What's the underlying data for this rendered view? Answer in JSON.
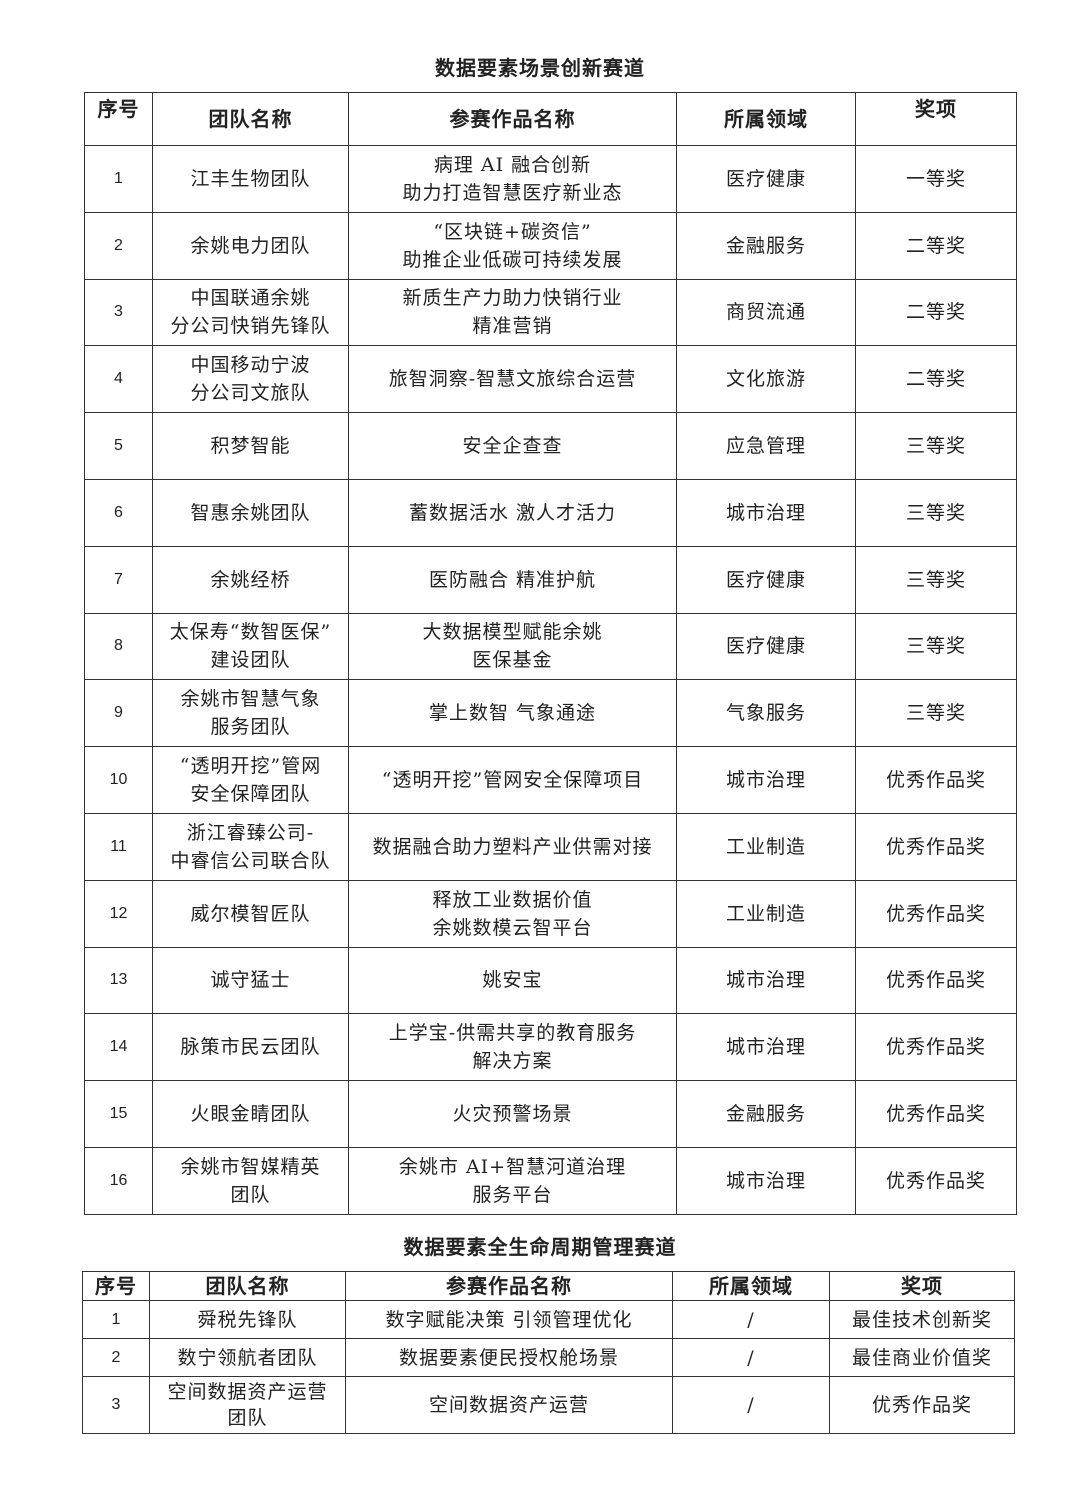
{
  "track1": {
    "title": "数据要素场景创新赛道",
    "headers": [
      "序号",
      "团队名称",
      "参赛作品名称",
      "所属领域",
      "奖项"
    ],
    "rows": [
      [
        "1",
        "江丰生物团队",
        "病理 AI 融合创新\n助力打造智慧医疗新业态",
        "医疗健康",
        "一等奖"
      ],
      [
        "2",
        "余姚电力团队",
        "“区块链+碳资信”\n助推企业低碳可持续发展",
        "金融服务",
        "二等奖"
      ],
      [
        "3",
        "中国联通余姚\n分公司快销先锋队",
        "新质生产力助力快销行业\n精准营销",
        "商贸流通",
        "二等奖"
      ],
      [
        "4",
        "中国移动宁波\n分公司文旅队",
        "旅智洞察-智慧文旅综合运营",
        "文化旅游",
        "二等奖"
      ],
      [
        "5",
        "积梦智能",
        "安全企查查",
        "应急管理",
        "三等奖"
      ],
      [
        "6",
        "智惠余姚团队",
        "蓄数据活水  激人才活力",
        "城市治理",
        "三等奖"
      ],
      [
        "7",
        "余姚经桥",
        "医防融合  精准护航",
        "医疗健康",
        "三等奖"
      ],
      [
        "8",
        "太保寿“数智医保”\n建设团队",
        "大数据模型赋能余姚\n医保基金",
        "医疗健康",
        "三等奖"
      ],
      [
        "9",
        "余姚市智慧气象\n服务团队",
        "掌上数智  气象通途",
        "气象服务",
        "三等奖"
      ],
      [
        "10",
        "“透明开挖”管网\n安全保障团队",
        "“透明开挖”管网安全保障项目",
        "城市治理",
        "优秀作品奖"
      ],
      [
        "11",
        "浙江睿臻公司-\n中睿信公司联合队",
        "数据融合助力塑料产业供需对接",
        "工业制造",
        "优秀作品奖"
      ],
      [
        "12",
        "威尔模智匠队",
        "释放工业数据价值\n余姚数模云智平台",
        "工业制造",
        "优秀作品奖"
      ],
      [
        "13",
        "诚守猛士",
        "姚安宝",
        "城市治理",
        "优秀作品奖"
      ],
      [
        "14",
        "脉策市民云团队",
        "上学宝-供需共享的教育服务\n解决方案",
        "城市治理",
        "优秀作品奖"
      ],
      [
        "15",
        "火眼金睛团队",
        "火灾预警场景",
        "金融服务",
        "优秀作品奖"
      ],
      [
        "16",
        "余姚市智媒精英\n团队",
        "余姚市 AI+智慧河道治理\n服务平台",
        "城市治理",
        "优秀作品奖"
      ]
    ]
  },
  "track2": {
    "title": "数据要素全生命周期管理赛道",
    "headers": [
      "序号",
      "团队名称",
      "参赛作品名称",
      "所属领域",
      "奖项"
    ],
    "rows": [
      [
        "1",
        "舜税先锋队",
        "数字赋能决策  引领管理优化",
        "/",
        "最佳技术创新奖"
      ],
      [
        "2",
        "数宁领航者团队",
        "数据要素便民授权舱场景",
        "/",
        "最佳商业价值奖"
      ],
      [
        "3",
        "空间数据资产运营\n团队",
        "空间数据资产运营",
        "/",
        "优秀作品奖"
      ]
    ]
  }
}
